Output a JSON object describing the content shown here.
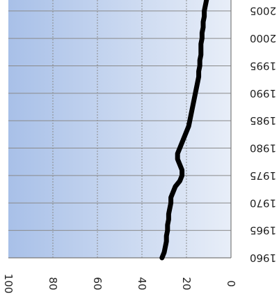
{
  "chart_data": {
    "type": "line",
    "title": "",
    "xlabel": "",
    "ylabel": "",
    "orientation": "rotated-upside-down",
    "x_ticks": [
      "1960",
      "1965",
      "1970",
      "1975",
      "1980",
      "1985",
      "1990",
      "1995",
      "2000",
      "2005"
    ],
    "y_ticks": [
      "0",
      "20",
      "40",
      "60",
      "80",
      "100"
    ],
    "xlim": [
      1960,
      2007
    ],
    "ylim": [
      0,
      100
    ],
    "grid": true,
    "legend": "none",
    "series": [
      {
        "color": "#000000",
        "x": [
          1960,
          1961,
          1962,
          1963,
          1964,
          1965,
          1966,
          1967,
          1968,
          1969,
          1970,
          1971,
          1972,
          1973,
          1974,
          1975,
          1976,
          1977,
          1978,
          1979,
          1980,
          1981,
          1982,
          1983,
          1984,
          1985,
          1986,
          1987,
          1988,
          1989,
          1990,
          1991,
          1992,
          1993,
          1994,
          1995,
          1996,
          1997,
          1998,
          1999,
          2000,
          2001,
          2002,
          2003,
          2004,
          2005,
          2006,
          2007
        ],
        "y": [
          31,
          30,
          29.5,
          29,
          29,
          28.5,
          28.5,
          28,
          28,
          27.5,
          27,
          27,
          26,
          25,
          23,
          22,
          22,
          23,
          24,
          24,
          23,
          22,
          21,
          20,
          19,
          18.5,
          18,
          17.5,
          17,
          16.5,
          16,
          15.5,
          15,
          14.5,
          14.5,
          14,
          14,
          13.5,
          13.5,
          13.5,
          13,
          13,
          12.5,
          12.5,
          12,
          12,
          11.5,
          11
        ]
      }
    ],
    "colors": {
      "plot_gradient_from": "#a8c0e8",
      "plot_gradient_to": "#e8eef8",
      "grid": "#8a8a8a",
      "axis": "#7a7a7a",
      "line": "#000000"
    }
  }
}
